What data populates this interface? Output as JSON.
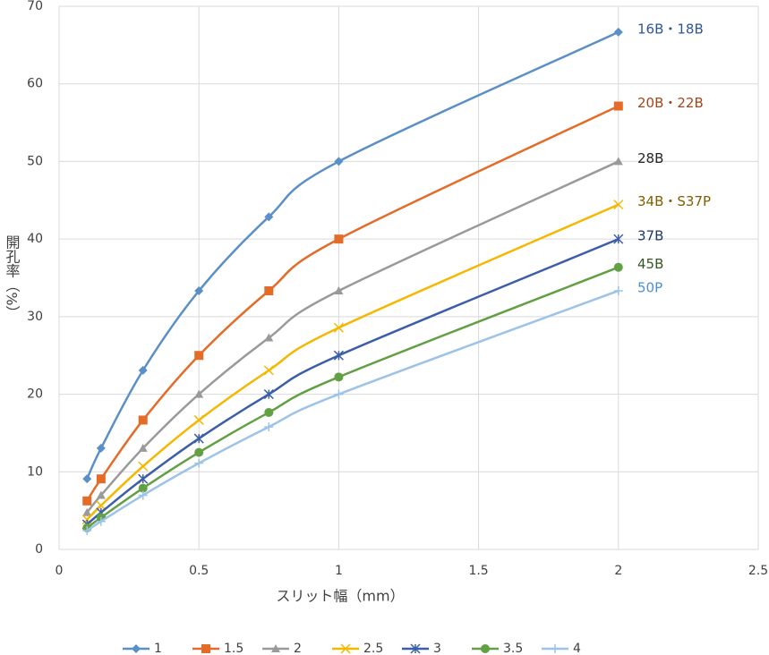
{
  "chart_data": {
    "type": "line",
    "x_label": "スリット幅（mm）",
    "y_label": "開孔率（%）",
    "x": [
      0.1,
      0.15,
      0.3,
      0.5,
      0.75,
      1,
      2
    ],
    "series": [
      {
        "name": "1",
        "color": "#5b8fc7",
        "marker": "diamond",
        "values": [
          9.09,
          13.04,
          23.08,
          33.33,
          42.86,
          50,
          66.67
        ]
      },
      {
        "name": "1.5",
        "color": "#e46c28",
        "marker": "square",
        "values": [
          6.25,
          9.09,
          16.67,
          25,
          33.33,
          40,
          57.14
        ]
      },
      {
        "name": "2",
        "color": "#9a9a9a",
        "marker": "triangle",
        "values": [
          4.76,
          6.98,
          13.04,
          20,
          27.27,
          33.33,
          50
        ]
      },
      {
        "name": "2.5",
        "color": "#f5b800",
        "marker": "x",
        "values": [
          3.85,
          5.66,
          10.71,
          16.67,
          23.08,
          28.57,
          44.44
        ]
      },
      {
        "name": "3",
        "color": "#3c5ea8",
        "marker": "star",
        "values": [
          3.23,
          4.76,
          9.09,
          14.29,
          20,
          25,
          40
        ]
      },
      {
        "name": "3.5",
        "color": "#62a043",
        "marker": "circle",
        "values": [
          2.78,
          4.11,
          7.89,
          12.5,
          17.65,
          22.22,
          36.36
        ]
      },
      {
        "name": "4",
        "color": "#9dc3e6",
        "marker": "plus",
        "values": [
          2.44,
          3.61,
          6.98,
          11.11,
          15.79,
          20,
          33.33
        ]
      }
    ],
    "annotations": [
      {
        "text": "16B・18B",
        "color": "#2f5597"
      },
      {
        "text": "20B・22B",
        "color": "#a0471c"
      },
      {
        "text": "28B",
        "color": "#262626"
      },
      {
        "text": "34B・S37P",
        "color": "#7f6000"
      },
      {
        "text": "37B",
        "color": "#1f3864"
      },
      {
        "text": "45B",
        "color": "#375623"
      },
      {
        "text": "50P",
        "color": "#4a8fd0"
      }
    ],
    "xlim": [
      0,
      2.5
    ],
    "xticks": [
      0,
      0.5,
      1,
      1.5,
      2,
      2.5
    ],
    "ylim": [
      0,
      70
    ],
    "yticks": [
      0,
      10,
      20,
      30,
      40,
      50,
      60,
      70
    ],
    "grid": true,
    "legend": "bottom"
  }
}
